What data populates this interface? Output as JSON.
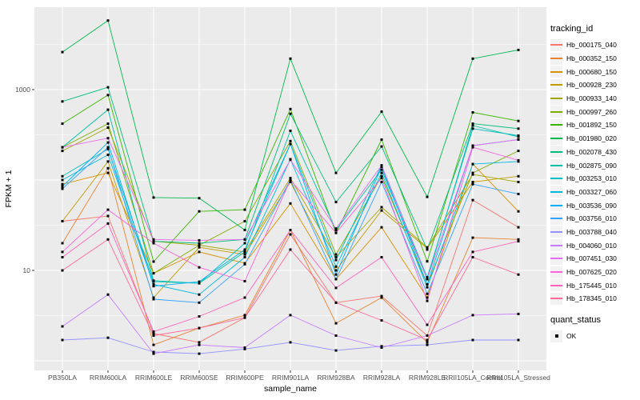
{
  "figure": {
    "background": "#FFFFFF",
    "panel_bg": "#EBEBEB",
    "grid_color": "#FFFFFF",
    "tick_color": "#333333",
    "tick_text_color": "#4D4D4D",
    "point_color": "#000000"
  },
  "axes": {
    "y_title": "FPKM + 1",
    "x_title": "sample_name",
    "y_ticks": [
      {
        "value": 1000,
        "label": "1000"
      },
      {
        "value": 10,
        "label": "10"
      }
    ],
    "y_major_gridlines": [
      1,
      10,
      100,
      1000
    ],
    "y_minor_gridlines": [
      3.162,
      31.623,
      316.228,
      3162.278
    ]
  },
  "legend": {
    "tracking_title": "tracking_id",
    "quant_title": "quant_status",
    "quant_items": [
      {
        "label": "OK",
        "marker": "black-square"
      }
    ]
  },
  "chart_data": {
    "type": "line",
    "title": "",
    "xlabel": "sample_name",
    "ylabel": "FPKM + 1",
    "y_scale": "log10",
    "ylim": [
      1,
      8000
    ],
    "grid": true,
    "legend_position": "right",
    "point_marker": "small-black-square",
    "categories": [
      "PB350LA",
      "RRIM600LA",
      "RRIM600LE",
      "RRIM600SE",
      "RRIM600PE",
      "RRIM901LA",
      "RRIM928BA",
      "RRIM928LA",
      "RRIM928LE",
      "RRII105LA_Control",
      "RRII105LA_Stressed"
    ],
    "series": [
      {
        "name": "Hb_000175_040",
        "color": "#F8766D",
        "values": [
          35,
          40,
          2.0,
          1.6,
          3.0,
          25,
          4.4,
          5.2,
          1.9,
          60,
          30
        ]
      },
      {
        "name": "Hb_000352_150",
        "color": "#EA8331",
        "values": [
          20,
          135,
          1.5,
          2.3,
          3.2,
          28,
          2.6,
          5.0,
          1.6,
          23,
          22
        ]
      },
      {
        "name": "Hb_000680_150",
        "color": "#D89000",
        "values": [
          90,
          120,
          9.3,
          16,
          12,
          55,
          8.0,
          30,
          5.0,
          150,
          45
        ]
      },
      {
        "name": "Hb_000928_230",
        "color": "#C09B00",
        "values": [
          35,
          160,
          5.0,
          18,
          15,
          95,
          10,
          46,
          17.5,
          95,
          110
        ]
      },
      {
        "name": "Hb_000933_140",
        "color": "#A3A500",
        "values": [
          210,
          380,
          21,
          19,
          16,
          105,
          14,
          50,
          18,
          115,
          95
        ]
      },
      {
        "name": "Hb_000997_260",
        "color": "#7CAE00",
        "values": [
          230,
          420,
          9.3,
          19,
          35,
          270,
          15,
          110,
          7.0,
          120,
          210
        ]
      },
      {
        "name": "Hb_001892_150",
        "color": "#39B600",
        "values": [
          420,
          870,
          12.5,
          45,
          47,
          610,
          26,
          280,
          12.6,
          560,
          450
        ]
      },
      {
        "name": "Hb_001980_020",
        "color": "#00BB4E",
        "values": [
          2600,
          5800,
          64,
          63,
          28,
          2200,
          120,
          570,
          65,
          2200,
          2750
        ]
      },
      {
        "name": "Hb_002078_430",
        "color": "#00BF7D",
        "values": [
          740,
          1060,
          21,
          20,
          22,
          540,
          57,
          235,
          17,
          420,
          370
        ]
      },
      {
        "name": "Hb_002875_090",
        "color": "#00C1A3",
        "values": [
          230,
          600,
          7.7,
          7.2,
          16,
          350,
          28,
          130,
          8.0,
          400,
          300
        ]
      },
      {
        "name": "Hb_003253_010",
        "color": "#00BFC4",
        "values": [
          110,
          220,
          7.5,
          7.2,
          20,
          250,
          13,
          145,
          8.4,
          370,
          310
        ]
      },
      {
        "name": "Hb_003327_060",
        "color": "#00BAE0",
        "values": [
          100,
          190,
          7.0,
          5.4,
          14,
          170,
          11,
          120,
          6.5,
          150,
          160
        ]
      },
      {
        "name": "Hb_003536_090",
        "color": "#00B0F6",
        "values": [
          85,
          260,
          6.7,
          7.5,
          17,
          250,
          9.0,
          140,
          7.0,
          240,
          280
        ]
      },
      {
        "name": "Hb_003756_010",
        "color": "#35A2FF",
        "values": [
          80,
          230,
          4.8,
          4.4,
          11.7,
          100,
          8.0,
          95,
          5.5,
          90,
          70
        ]
      },
      {
        "name": "Hb_003788_040",
        "color": "#9590FF",
        "values": [
          1.7,
          1.8,
          1.25,
          1.2,
          1.35,
          1.6,
          1.3,
          1.45,
          1.5,
          1.7,
          1.7
        ]
      },
      {
        "name": "Hb_004060_010",
        "color": "#C77CFF",
        "values": [
          2.4,
          5.4,
          1.2,
          1.5,
          1.4,
          3.2,
          1.9,
          1.4,
          1.9,
          3.2,
          3.3
        ]
      },
      {
        "name": "Hb_007451_030",
        "color": "#E76BF3",
        "values": [
          230,
          290,
          22,
          21.5,
          22,
          167,
          29,
          145,
          8.0,
          240,
          280
        ]
      },
      {
        "name": "Hb_007625_020",
        "color": "#FA62DB",
        "values": [
          16,
          47,
          20,
          10.8,
          7.6,
          100,
          26,
          105,
          4.6,
          230,
          165
        ]
      },
      {
        "name": "Hb_175445_010",
        "color": "#FF62BC",
        "values": [
          14,
          33,
          2.1,
          3.1,
          5.0,
          28,
          6.4,
          14,
          2.5,
          16,
          21
        ]
      },
      {
        "name": "Hb_178345_010",
        "color": "#FF6A98",
        "values": [
          10,
          22,
          1.9,
          2.3,
          3.0,
          17,
          4.4,
          2.8,
          1.7,
          14,
          9.0
        ]
      }
    ]
  }
}
